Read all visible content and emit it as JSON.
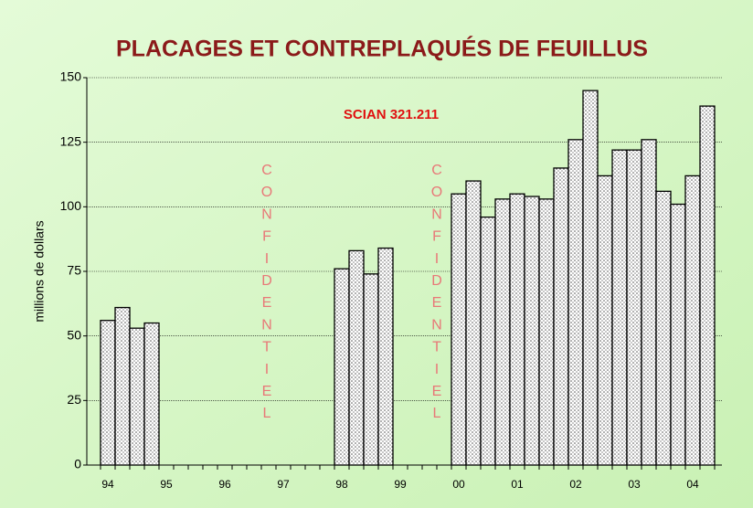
{
  "chart_data": {
    "type": "bar",
    "title": "PLACAGES ET CONTREPLAQUÉS DE FEUILLUS",
    "subtitle": "SCIAN 321.211",
    "y_label": "millions de dollars",
    "annotations": [
      "CONFIDENTIEL",
      "CONFIDENTIEL"
    ],
    "categories": [
      "94",
      null,
      null,
      null,
      "95",
      null,
      null,
      null,
      "96",
      null,
      null,
      null,
      "97",
      null,
      null,
      null,
      "98",
      null,
      null,
      null,
      "99",
      null,
      null,
      null,
      "00",
      null,
      null,
      null,
      "01",
      null,
      null,
      null,
      "02",
      null,
      null,
      null,
      "03",
      null,
      null,
      null,
      "04",
      null
    ],
    "values": [
      56,
      61,
      53,
      55,
      null,
      null,
      null,
      null,
      null,
      null,
      null,
      null,
      null,
      null,
      null,
      null,
      76,
      83,
      74,
      84,
      null,
      null,
      null,
      null,
      105,
      110,
      96,
      103,
      105,
      104,
      103,
      115,
      126,
      145,
      112,
      122,
      122,
      126,
      106,
      101,
      112,
      139
    ],
    "color": "#ffffff",
    "ylim": [
      0,
      150
    ],
    "yticks": [
      0,
      25,
      50,
      75,
      100,
      125,
      150
    ],
    "grid": true
  }
}
